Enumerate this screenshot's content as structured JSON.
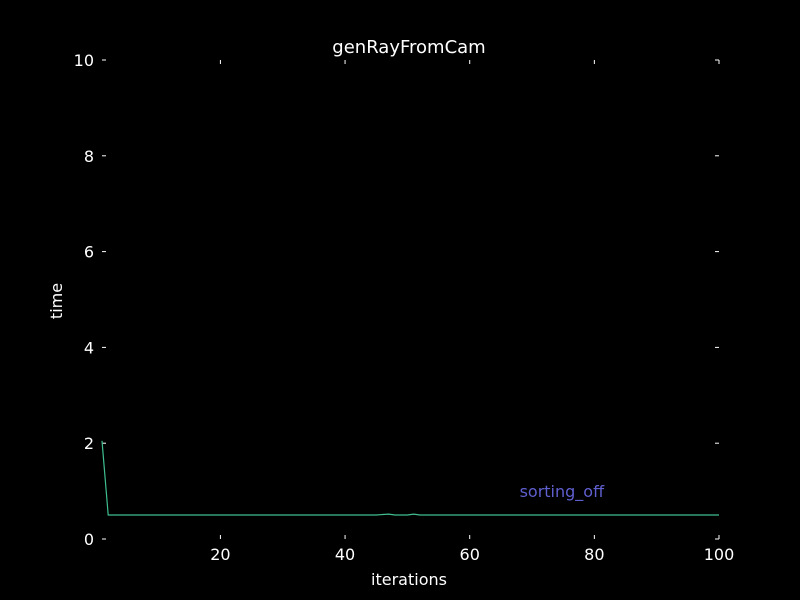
{
  "chart_data": {
    "type": "line",
    "title": "genRayFromCam",
    "xlabel": "iterations",
    "ylabel": "time",
    "xlim": [
      1,
      100
    ],
    "ylim": [
      0,
      10
    ],
    "x_ticks": [
      20,
      40,
      60,
      80,
      100
    ],
    "y_ticks": [
      0,
      2,
      4,
      6,
      8,
      10
    ],
    "grid": false,
    "series": [
      {
        "color": "#3fbf8f",
        "points": [
          [
            1,
            2.05
          ],
          [
            2,
            0.5
          ],
          [
            10,
            0.5
          ],
          [
            20,
            0.5
          ],
          [
            30,
            0.5
          ],
          [
            40,
            0.5
          ],
          [
            45,
            0.5
          ],
          [
            47,
            0.52
          ],
          [
            48,
            0.5
          ],
          [
            50,
            0.5
          ],
          [
            51,
            0.52
          ],
          [
            52,
            0.5
          ],
          [
            60,
            0.5
          ],
          [
            70,
            0.5
          ],
          [
            80,
            0.5
          ],
          [
            90,
            0.5
          ],
          [
            100,
            0.5
          ]
        ]
      }
    ],
    "annotations": [
      {
        "text": "sorting_off",
        "x": 68,
        "y": 1.0,
        "color": "#5f5fd0"
      }
    ]
  }
}
